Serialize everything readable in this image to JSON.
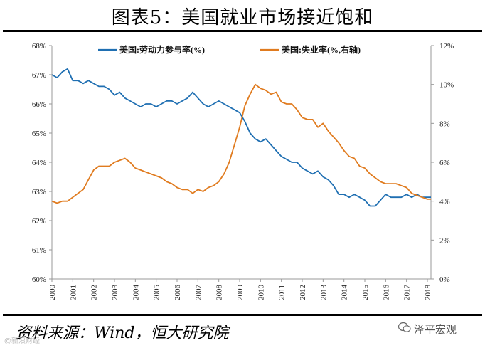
{
  "title": "图表5：美国就业市场接近饱和",
  "source": "资料来源：Wind，恒大研究院",
  "brand": "泽平宏观",
  "watermark": "@新浪财经",
  "chart_data": {
    "type": "line",
    "grid": false,
    "legend_position": "top",
    "x_range": [
      2000,
      2018.17
    ],
    "x_ticks": [
      "2000",
      "2001",
      "2002",
      "2003",
      "2004",
      "2005",
      "2006",
      "2007",
      "2008",
      "2009",
      "2010",
      "2011",
      "2012",
      "2013",
      "2014",
      "2015",
      "2016",
      "2017",
      "2018"
    ],
    "y_left": {
      "range": [
        60,
        68
      ],
      "ticks": [
        "60%",
        "61%",
        "62%",
        "63%",
        "64%",
        "65%",
        "66%",
        "67%",
        "68%"
      ]
    },
    "y_right": {
      "range": [
        0,
        12
      ],
      "ticks": [
        "0%",
        "2%",
        "4%",
        "6%",
        "8%",
        "10%",
        "12%"
      ]
    },
    "series": [
      {
        "name": "美国:劳动力参与率(%)",
        "axis": "left",
        "color": "#1f6fb2",
        "points": [
          [
            2000.0,
            67.0
          ],
          [
            2000.25,
            66.9
          ],
          [
            2000.5,
            67.1
          ],
          [
            2000.75,
            67.2
          ],
          [
            2001.0,
            66.8
          ],
          [
            2001.25,
            66.8
          ],
          [
            2001.5,
            66.7
          ],
          [
            2001.75,
            66.8
          ],
          [
            2002.0,
            66.7
          ],
          [
            2002.25,
            66.6
          ],
          [
            2002.5,
            66.6
          ],
          [
            2002.75,
            66.5
          ],
          [
            2003.0,
            66.3
          ],
          [
            2003.25,
            66.4
          ],
          [
            2003.5,
            66.2
          ],
          [
            2003.75,
            66.1
          ],
          [
            2004.0,
            66.0
          ],
          [
            2004.25,
            65.9
          ],
          [
            2004.5,
            66.0
          ],
          [
            2004.75,
            66.0
          ],
          [
            2005.0,
            65.9
          ],
          [
            2005.25,
            66.0
          ],
          [
            2005.5,
            66.1
          ],
          [
            2005.75,
            66.1
          ],
          [
            2006.0,
            66.0
          ],
          [
            2006.25,
            66.1
          ],
          [
            2006.5,
            66.2
          ],
          [
            2006.75,
            66.4
          ],
          [
            2007.0,
            66.2
          ],
          [
            2007.25,
            66.0
          ],
          [
            2007.5,
            65.9
          ],
          [
            2007.75,
            66.0
          ],
          [
            2008.0,
            66.1
          ],
          [
            2008.25,
            66.0
          ],
          [
            2008.5,
            65.9
          ],
          [
            2008.75,
            65.8
          ],
          [
            2009.0,
            65.7
          ],
          [
            2009.25,
            65.4
          ],
          [
            2009.5,
            65.0
          ],
          [
            2009.75,
            64.8
          ],
          [
            2010.0,
            64.7
          ],
          [
            2010.25,
            64.8
          ],
          [
            2010.5,
            64.6
          ],
          [
            2010.75,
            64.4
          ],
          [
            2011.0,
            64.2
          ],
          [
            2011.25,
            64.1
          ],
          [
            2011.5,
            64.0
          ],
          [
            2011.75,
            64.0
          ],
          [
            2012.0,
            63.8
          ],
          [
            2012.25,
            63.7
          ],
          [
            2012.5,
            63.6
          ],
          [
            2012.75,
            63.7
          ],
          [
            2013.0,
            63.5
          ],
          [
            2013.25,
            63.4
          ],
          [
            2013.5,
            63.2
          ],
          [
            2013.75,
            62.9
          ],
          [
            2014.0,
            62.9
          ],
          [
            2014.25,
            62.8
          ],
          [
            2014.5,
            62.9
          ],
          [
            2014.75,
            62.8
          ],
          [
            2015.0,
            62.7
          ],
          [
            2015.25,
            62.5
          ],
          [
            2015.5,
            62.5
          ],
          [
            2015.75,
            62.7
          ],
          [
            2016.0,
            62.9
          ],
          [
            2016.25,
            62.8
          ],
          [
            2016.5,
            62.8
          ],
          [
            2016.75,
            62.8
          ],
          [
            2017.0,
            62.9
          ],
          [
            2017.25,
            62.8
          ],
          [
            2017.5,
            62.9
          ],
          [
            2017.75,
            62.8
          ],
          [
            2018.0,
            62.8
          ],
          [
            2018.17,
            62.8
          ]
        ]
      },
      {
        "name": "美国:失业率(%,右轴)",
        "axis": "right",
        "color": "#e07b1f",
        "points": [
          [
            2000.0,
            4.0
          ],
          [
            2000.25,
            3.9
          ],
          [
            2000.5,
            4.0
          ],
          [
            2000.75,
            4.0
          ],
          [
            2001.0,
            4.2
          ],
          [
            2001.25,
            4.4
          ],
          [
            2001.5,
            4.6
          ],
          [
            2001.75,
            5.1
          ],
          [
            2002.0,
            5.6
          ],
          [
            2002.25,
            5.8
          ],
          [
            2002.5,
            5.8
          ],
          [
            2002.75,
            5.8
          ],
          [
            2003.0,
            6.0
          ],
          [
            2003.25,
            6.1
          ],
          [
            2003.5,
            6.2
          ],
          [
            2003.75,
            6.0
          ],
          [
            2004.0,
            5.7
          ],
          [
            2004.25,
            5.6
          ],
          [
            2004.5,
            5.5
          ],
          [
            2004.75,
            5.4
          ],
          [
            2005.0,
            5.3
          ],
          [
            2005.25,
            5.2
          ],
          [
            2005.5,
            5.0
          ],
          [
            2005.75,
            4.9
          ],
          [
            2006.0,
            4.7
          ],
          [
            2006.25,
            4.6
          ],
          [
            2006.5,
            4.6
          ],
          [
            2006.75,
            4.4
          ],
          [
            2007.0,
            4.6
          ],
          [
            2007.25,
            4.5
          ],
          [
            2007.5,
            4.7
          ],
          [
            2007.75,
            4.8
          ],
          [
            2008.0,
            5.0
          ],
          [
            2008.25,
            5.4
          ],
          [
            2008.5,
            6.0
          ],
          [
            2008.75,
            6.9
          ],
          [
            2009.0,
            7.8
          ],
          [
            2009.25,
            8.9
          ],
          [
            2009.5,
            9.5
          ],
          [
            2009.75,
            10.0
          ],
          [
            2010.0,
            9.8
          ],
          [
            2010.25,
            9.7
          ],
          [
            2010.5,
            9.5
          ],
          [
            2010.75,
            9.6
          ],
          [
            2011.0,
            9.1
          ],
          [
            2011.25,
            9.0
          ],
          [
            2011.5,
            9.0
          ],
          [
            2011.75,
            8.7
          ],
          [
            2012.0,
            8.3
          ],
          [
            2012.25,
            8.2
          ],
          [
            2012.5,
            8.2
          ],
          [
            2012.75,
            7.8
          ],
          [
            2013.0,
            8.0
          ],
          [
            2013.25,
            7.6
          ],
          [
            2013.5,
            7.3
          ],
          [
            2013.75,
            7.0
          ],
          [
            2014.0,
            6.6
          ],
          [
            2014.25,
            6.3
          ],
          [
            2014.5,
            6.2
          ],
          [
            2014.75,
            5.8
          ],
          [
            2015.0,
            5.7
          ],
          [
            2015.25,
            5.4
          ],
          [
            2015.5,
            5.2
          ],
          [
            2015.75,
            5.0
          ],
          [
            2016.0,
            4.9
          ],
          [
            2016.25,
            4.9
          ],
          [
            2016.5,
            4.9
          ],
          [
            2016.75,
            4.8
          ],
          [
            2017.0,
            4.7
          ],
          [
            2017.25,
            4.4
          ],
          [
            2017.5,
            4.3
          ],
          [
            2017.75,
            4.2
          ],
          [
            2018.0,
            4.1
          ],
          [
            2018.17,
            4.1
          ]
        ]
      }
    ]
  }
}
